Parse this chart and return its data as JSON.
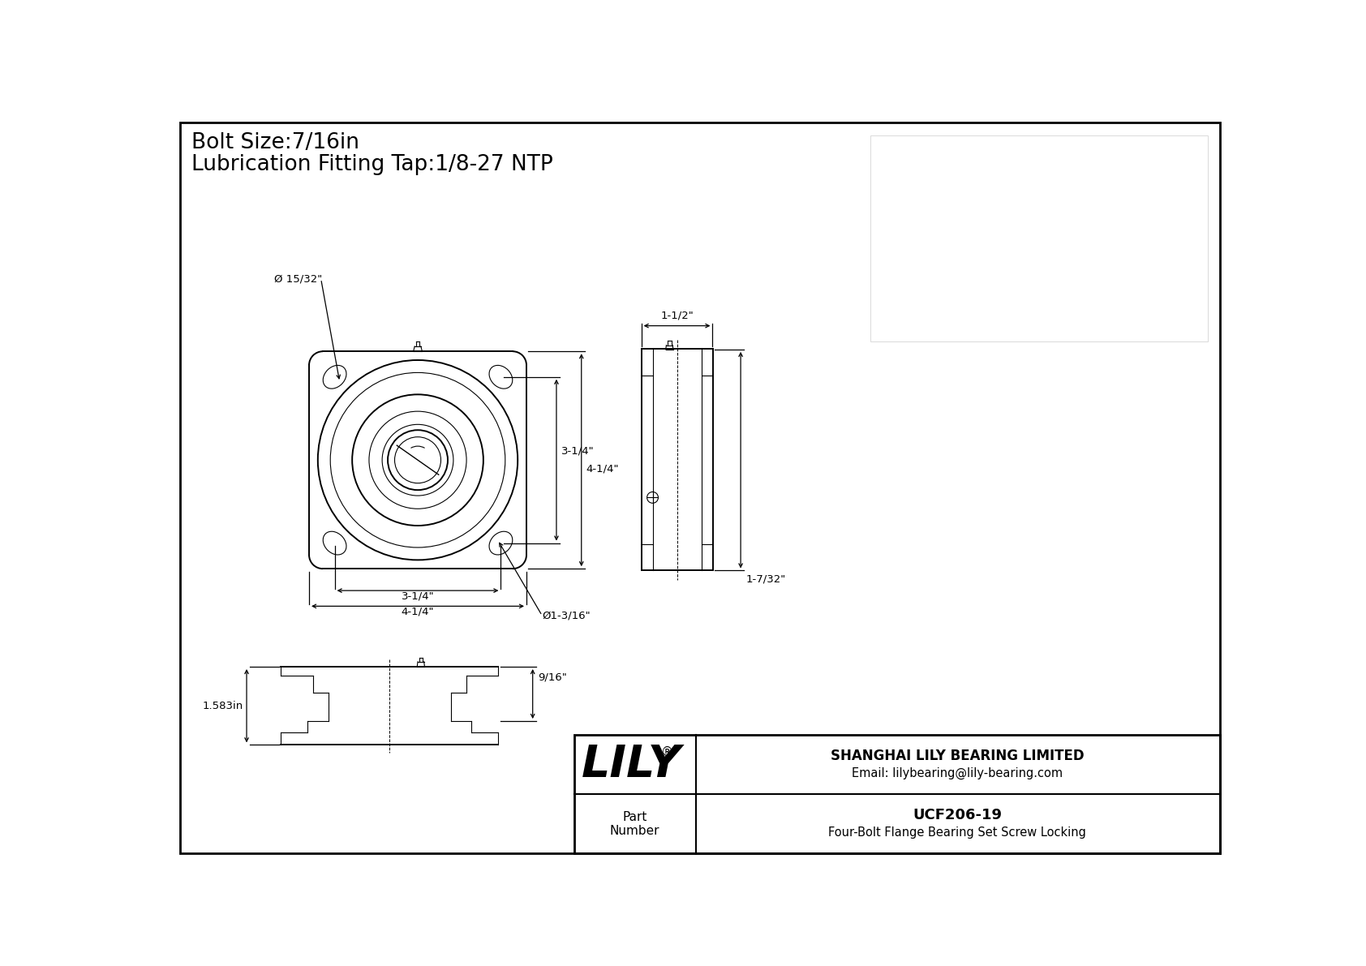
{
  "bg_color": "#ffffff",
  "line_color": "#000000",
  "title_line1": "Bolt Size:7/16in",
  "title_line2": "Lubrication Fitting Tap:1/8-27 NTP",
  "title_fontsize": 19,
  "company_name": "SHANGHAI LILY BEARING LIMITED",
  "company_email": "Email: lilybearing@lily-bearing.com",
  "part_label": "Part\nNumber",
  "part_number": "UCF206-19",
  "part_desc": "Four-Bolt Flange Bearing Set Screw Locking",
  "brand": "LILY",
  "brand_reg": "®",
  "dim_bolt_circle": "Ø 15/32\"",
  "dim_bore": "Ø1-3/16\"",
  "dim_side_width": "1-1/2\"",
  "dim_side_height": "1-7/32\"",
  "dim_front_height": "9/16\"",
  "dim_front_label": "1.583in",
  "dim_34": "3-1/4\"",
  "dim_414": "4-1/4\"",
  "dim_34v": "3-1/4\"",
  "dim_414v": "4-1/4\""
}
